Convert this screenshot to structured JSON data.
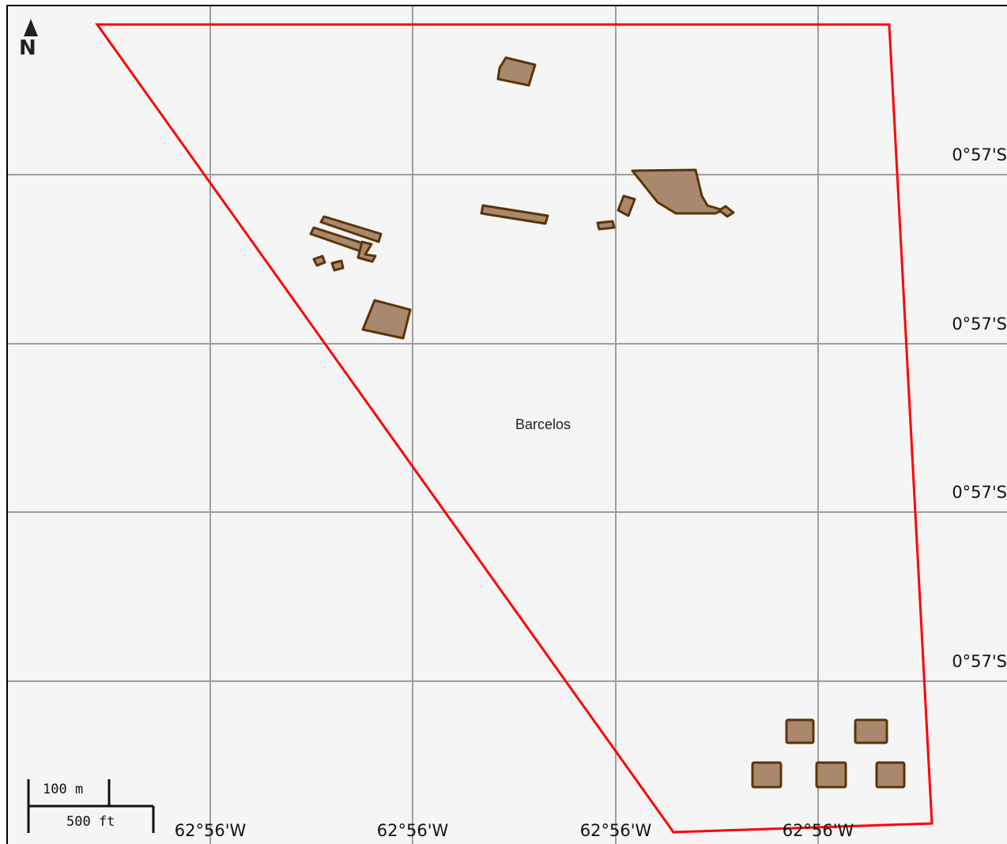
{
  "place": {
    "name": "Barcelos"
  },
  "latitude_labels": [
    "0°57'S",
    "0°57'S",
    "0°57'S",
    "0°57'S"
  ],
  "longitude_labels": [
    "62°56'W",
    "62°56'W",
    "62°56'W",
    "62°56'W"
  ],
  "north": {
    "letter": "N",
    "icon": "north-arrow-icon"
  },
  "scale": {
    "metric": "100 m",
    "imperial": "500 ft"
  },
  "colors": {
    "background": "#f5f5f5",
    "grid": "#9e9e9e",
    "boundary": "#ff0000",
    "building_fill": "#a8896d",
    "building_stroke": "#5c3306"
  }
}
